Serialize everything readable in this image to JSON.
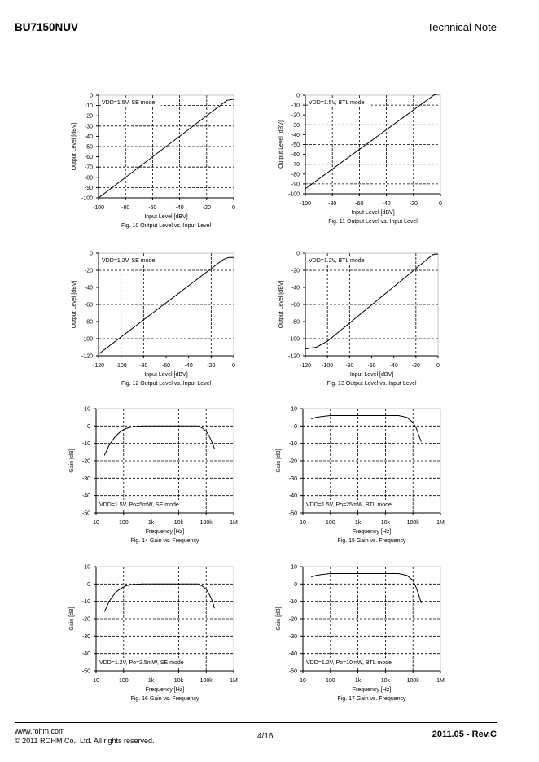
{
  "header": {
    "part_number": "BU7150NUV",
    "doc_type": "Technical Note"
  },
  "footer": {
    "url": "www.rohm.com",
    "copyright": "© 2011 ROHM Co., Ltd. All rights reserved.",
    "page": "4/16",
    "revision": "2011.05  -  Rev.C"
  },
  "chart_data": [
    {
      "type": "line",
      "caption": "Fig. 10 Output Level vs. Input Level",
      "annotation": "VDD=1.5V, SE mode",
      "xlabel": "Input Level [dBV]",
      "ylabel": "Output Level [dBV]",
      "xlim": [
        -100,
        0
      ],
      "ylim": [
        -100,
        0
      ],
      "xscale": "linear",
      "xticks": [
        -100,
        -80,
        -60,
        -40,
        -20,
        0
      ],
      "yticks": [
        0,
        -10,
        -20,
        -30,
        -40,
        -50,
        -60,
        -70,
        -80,
        -90,
        -100
      ],
      "xgrid": [
        -80,
        -60,
        -40,
        -20
      ],
      "ygrid": [
        -10,
        -30,
        -50,
        -70,
        -90
      ],
      "series": [
        {
          "x": [
            -100,
            -10,
            -7,
            -5,
            0
          ],
          "y": [
            -100,
            -10,
            -7,
            -5,
            -4
          ]
        }
      ]
    },
    {
      "type": "line",
      "caption": "Fig. 11 Output Level vs. Input Level",
      "annotation": "VDD=1.5V, BTL mode",
      "xlabel": "Input Level [dBV]",
      "ylabel": "Output Level [dBV]",
      "xlim": [
        -100,
        0
      ],
      "ylim": [
        -100,
        0
      ],
      "xscale": "linear",
      "xticks": [
        -100,
        -80,
        -60,
        -40,
        -20,
        0
      ],
      "yticks": [
        0,
        -10,
        -20,
        -30,
        -40,
        -50,
        -60,
        -70,
        -80,
        -90,
        -100
      ],
      "xgrid": [
        -80,
        -60,
        -40,
        -20
      ],
      "ygrid": [
        -10,
        -30,
        -50,
        -70,
        -90
      ],
      "series": [
        {
          "x": [
            -100,
            -5,
            -3,
            0
          ],
          "y": [
            -95,
            0,
            1,
            1
          ]
        }
      ]
    },
    {
      "type": "line",
      "caption": "Fig. 12 Output Level vs. Input Level",
      "annotation": "VDD=1.2V, SE mode",
      "xlabel": "Input Level [dBV]",
      "ylabel": "Output Level [dBV]",
      "xlim": [
        -120,
        0
      ],
      "ylim": [
        -120,
        0
      ],
      "xscale": "linear",
      "xticks": [
        -120,
        -100,
        -80,
        -60,
        -40,
        -20,
        0
      ],
      "yticks": [
        0,
        -20,
        -40,
        -60,
        -80,
        -100,
        -120
      ],
      "xgrid": [
        -100,
        -80,
        -20
      ],
      "ygrid": [
        -20,
        -60,
        -100
      ],
      "series": [
        {
          "x": [
            -120,
            -10,
            -7,
            -4,
            0
          ],
          "y": [
            -118,
            -8,
            -6,
            -5,
            -5
          ]
        }
      ]
    },
    {
      "type": "line",
      "caption": "Fig. 13 Output Level vs. Input Level",
      "annotation": "VDD=1.2V, BTL mode",
      "xlabel": "Input Level [dBV]",
      "ylabel": "Output Level [dBV]",
      "xlim": [
        -120,
        0
      ],
      "ylim": [
        -120,
        0
      ],
      "xscale": "linear",
      "xticks": [
        -120,
        -100,
        -80,
        -60,
        -40,
        -20,
        0
      ],
      "yticks": [
        0,
        -20,
        -40,
        -60,
        -80,
        -100,
        -120
      ],
      "xgrid": [
        -100,
        -80,
        -20
      ],
      "ygrid": [
        -20,
        -60,
        -100
      ],
      "series": [
        {
          "x": [
            -120,
            -110,
            -100,
            -5,
            -3,
            0
          ],
          "y": [
            -112,
            -110,
            -103,
            -2,
            -1,
            -1
          ]
        }
      ]
    },
    {
      "type": "line",
      "caption": "Fig. 14 Gain vs. Frequency",
      "annotation": "VDD=1.5V, Po=5mW, SE mode",
      "xlabel": "Frequency [Hz]",
      "ylabel": "Gain [dB]",
      "xlim": [
        10,
        1000000
      ],
      "ylim": [
        -50,
        10
      ],
      "xscale": "log",
      "xticks": [
        10,
        100,
        1000,
        10000,
        100000,
        1000000
      ],
      "xtick_labels": [
        "10",
        "100",
        "1k",
        "10k",
        "100k",
        "1M"
      ],
      "yticks": [
        10,
        0,
        -10,
        -20,
        -30,
        -40,
        -50
      ],
      "xgrid": [
        100,
        1000,
        10000,
        100000
      ],
      "ygrid": [
        0,
        -10,
        -20,
        -30,
        -40
      ],
      "series": [
        {
          "x": [
            20,
            30,
            50,
            80,
            120,
            200,
            500,
            1000,
            10000,
            50000,
            70000,
            100000,
            130000,
            170000,
            200000
          ],
          "y": [
            -17,
            -11,
            -6,
            -3,
            -1.5,
            -0.5,
            0,
            0,
            0,
            0,
            -1,
            -3,
            -6,
            -10,
            -13
          ]
        }
      ]
    },
    {
      "type": "line",
      "caption": "Fig. 15 Gain vs. Frequency",
      "annotation": "VDD=1.5V, Po=25mW, BTL mode",
      "xlabel": "Frequency [Hz]",
      "ylabel": "Gain [dB]",
      "xlim": [
        10,
        1000000
      ],
      "ylim": [
        -50,
        10
      ],
      "xscale": "log",
      "xticks": [
        10,
        100,
        1000,
        10000,
        100000,
        1000000
      ],
      "xtick_labels": [
        "10",
        "100",
        "1k",
        "10k",
        "100k",
        "1M"
      ],
      "yticks": [
        10,
        0,
        -10,
        -20,
        -30,
        -40,
        -50
      ],
      "xgrid": [
        100,
        1000,
        10000,
        100000
      ],
      "ygrid": [
        0,
        -10,
        -20,
        -30,
        -40
      ],
      "series": [
        {
          "x": [
            20,
            30,
            50,
            100,
            1000,
            10000,
            30000,
            60000,
            100000,
            130000,
            160000,
            200000
          ],
          "y": [
            4,
            5,
            5.5,
            6,
            6,
            6,
            6,
            5,
            2,
            -1,
            -5,
            -9
          ]
        }
      ]
    },
    {
      "type": "line",
      "caption": "Fig. 16 Gain vs. Frequency",
      "annotation": "VDD=1.2V, Po=2.5mW, SE mode",
      "xlabel": "Frequency [Hz]",
      "ylabel": "Gain [dB]",
      "xlim": [
        10,
        1000000
      ],
      "ylim": [
        -50,
        10
      ],
      "xscale": "log",
      "xticks": [
        10,
        100,
        1000,
        10000,
        100000,
        1000000
      ],
      "xtick_labels": [
        "10",
        "100",
        "1k",
        "10k",
        "100k",
        "1M"
      ],
      "yticks": [
        10,
        0,
        -10,
        -20,
        -30,
        -40,
        -50
      ],
      "xgrid": [
        100,
        1000,
        10000,
        100000
      ],
      "ygrid": [
        0,
        -10,
        -20,
        -30,
        -40
      ],
      "series": [
        {
          "x": [
            20,
            30,
            50,
            80,
            120,
            200,
            500,
            1000,
            10000,
            50000,
            70000,
            100000,
            130000,
            170000,
            200000
          ],
          "y": [
            -16,
            -10,
            -5,
            -2.5,
            -1,
            -0.3,
            0,
            0,
            0,
            0,
            -1,
            -3,
            -6,
            -10,
            -14
          ]
        }
      ]
    },
    {
      "type": "line",
      "caption": "Fig. 17 Gain vs. Frequency",
      "annotation": "VDD=1.2V, Po=10mW, BTL mode",
      "xlabel": "Frequency [Hz]",
      "ylabel": "Gain [dB]",
      "xlim": [
        10,
        1000000
      ],
      "ylim": [
        -50,
        10
      ],
      "xscale": "log",
      "xticks": [
        10,
        100,
        1000,
        10000,
        100000,
        1000000
      ],
      "xtick_labels": [
        "10",
        "100",
        "1k",
        "10k",
        "100k",
        "1M"
      ],
      "yticks": [
        10,
        0,
        -10,
        -20,
        -30,
        -40,
        -50
      ],
      "xgrid": [
        100,
        1000,
        10000,
        100000
      ],
      "ygrid": [
        0,
        -10,
        -20,
        -30,
        -40
      ],
      "series": [
        {
          "x": [
            20,
            30,
            50,
            100,
            1000,
            10000,
            30000,
            60000,
            100000,
            130000,
            160000,
            200000
          ],
          "y": [
            4,
            5,
            5.5,
            6,
            6,
            6,
            6,
            5,
            2,
            -2,
            -6,
            -11
          ]
        }
      ]
    }
  ]
}
